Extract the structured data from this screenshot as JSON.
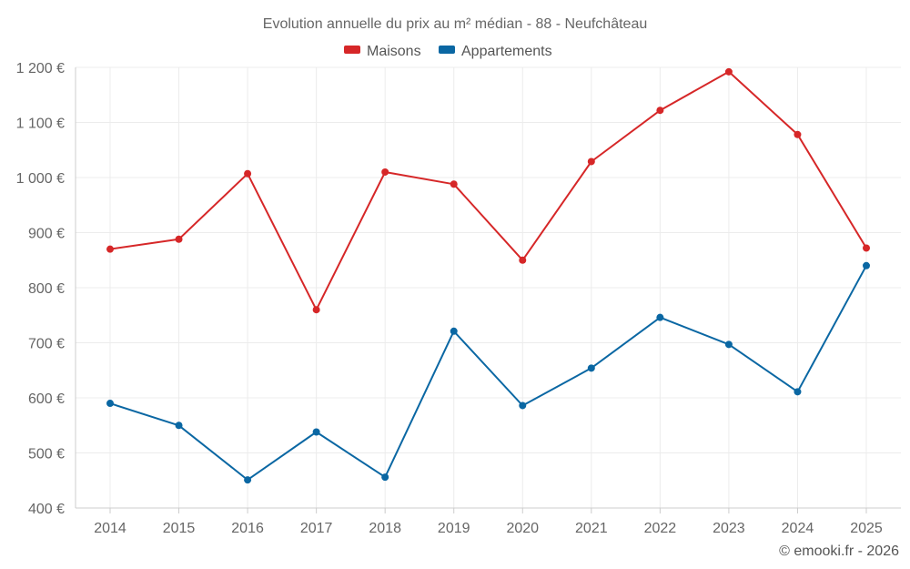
{
  "chart_data": {
    "type": "line",
    "title": "Evolution annuelle du prix au m² médian - 88 - Neufchâteau",
    "xlabel": "",
    "ylabel": "",
    "ylim": [
      400,
      1200
    ],
    "yticks": [
      400,
      500,
      600,
      700,
      800,
      900,
      1000,
      1100,
      1200
    ],
    "ytick_labels": [
      "400 €",
      "500 €",
      "600 €",
      "700 €",
      "800 €",
      "900 €",
      "1 000 €",
      "1 100 €",
      "1 200 €"
    ],
    "categories": [
      "2014",
      "2015",
      "2016",
      "2017",
      "2018",
      "2019",
      "2020",
      "2021",
      "2022",
      "2023",
      "2024",
      "2025"
    ],
    "grid": true,
    "legend_position": "top-center",
    "series": [
      {
        "name": "Maisons",
        "color": "#d62728",
        "values": [
          870,
          888,
          1007,
          760,
          1010,
          988,
          850,
          1029,
          1122,
          1192,
          1078,
          872
        ]
      },
      {
        "name": "Appartements",
        "color": "#0a67a3",
        "values": [
          590,
          550,
          451,
          538,
          456,
          721,
          586,
          654,
          746,
          697,
          611,
          840
        ]
      }
    ]
  },
  "credit": "© emooki.fr - 2026"
}
